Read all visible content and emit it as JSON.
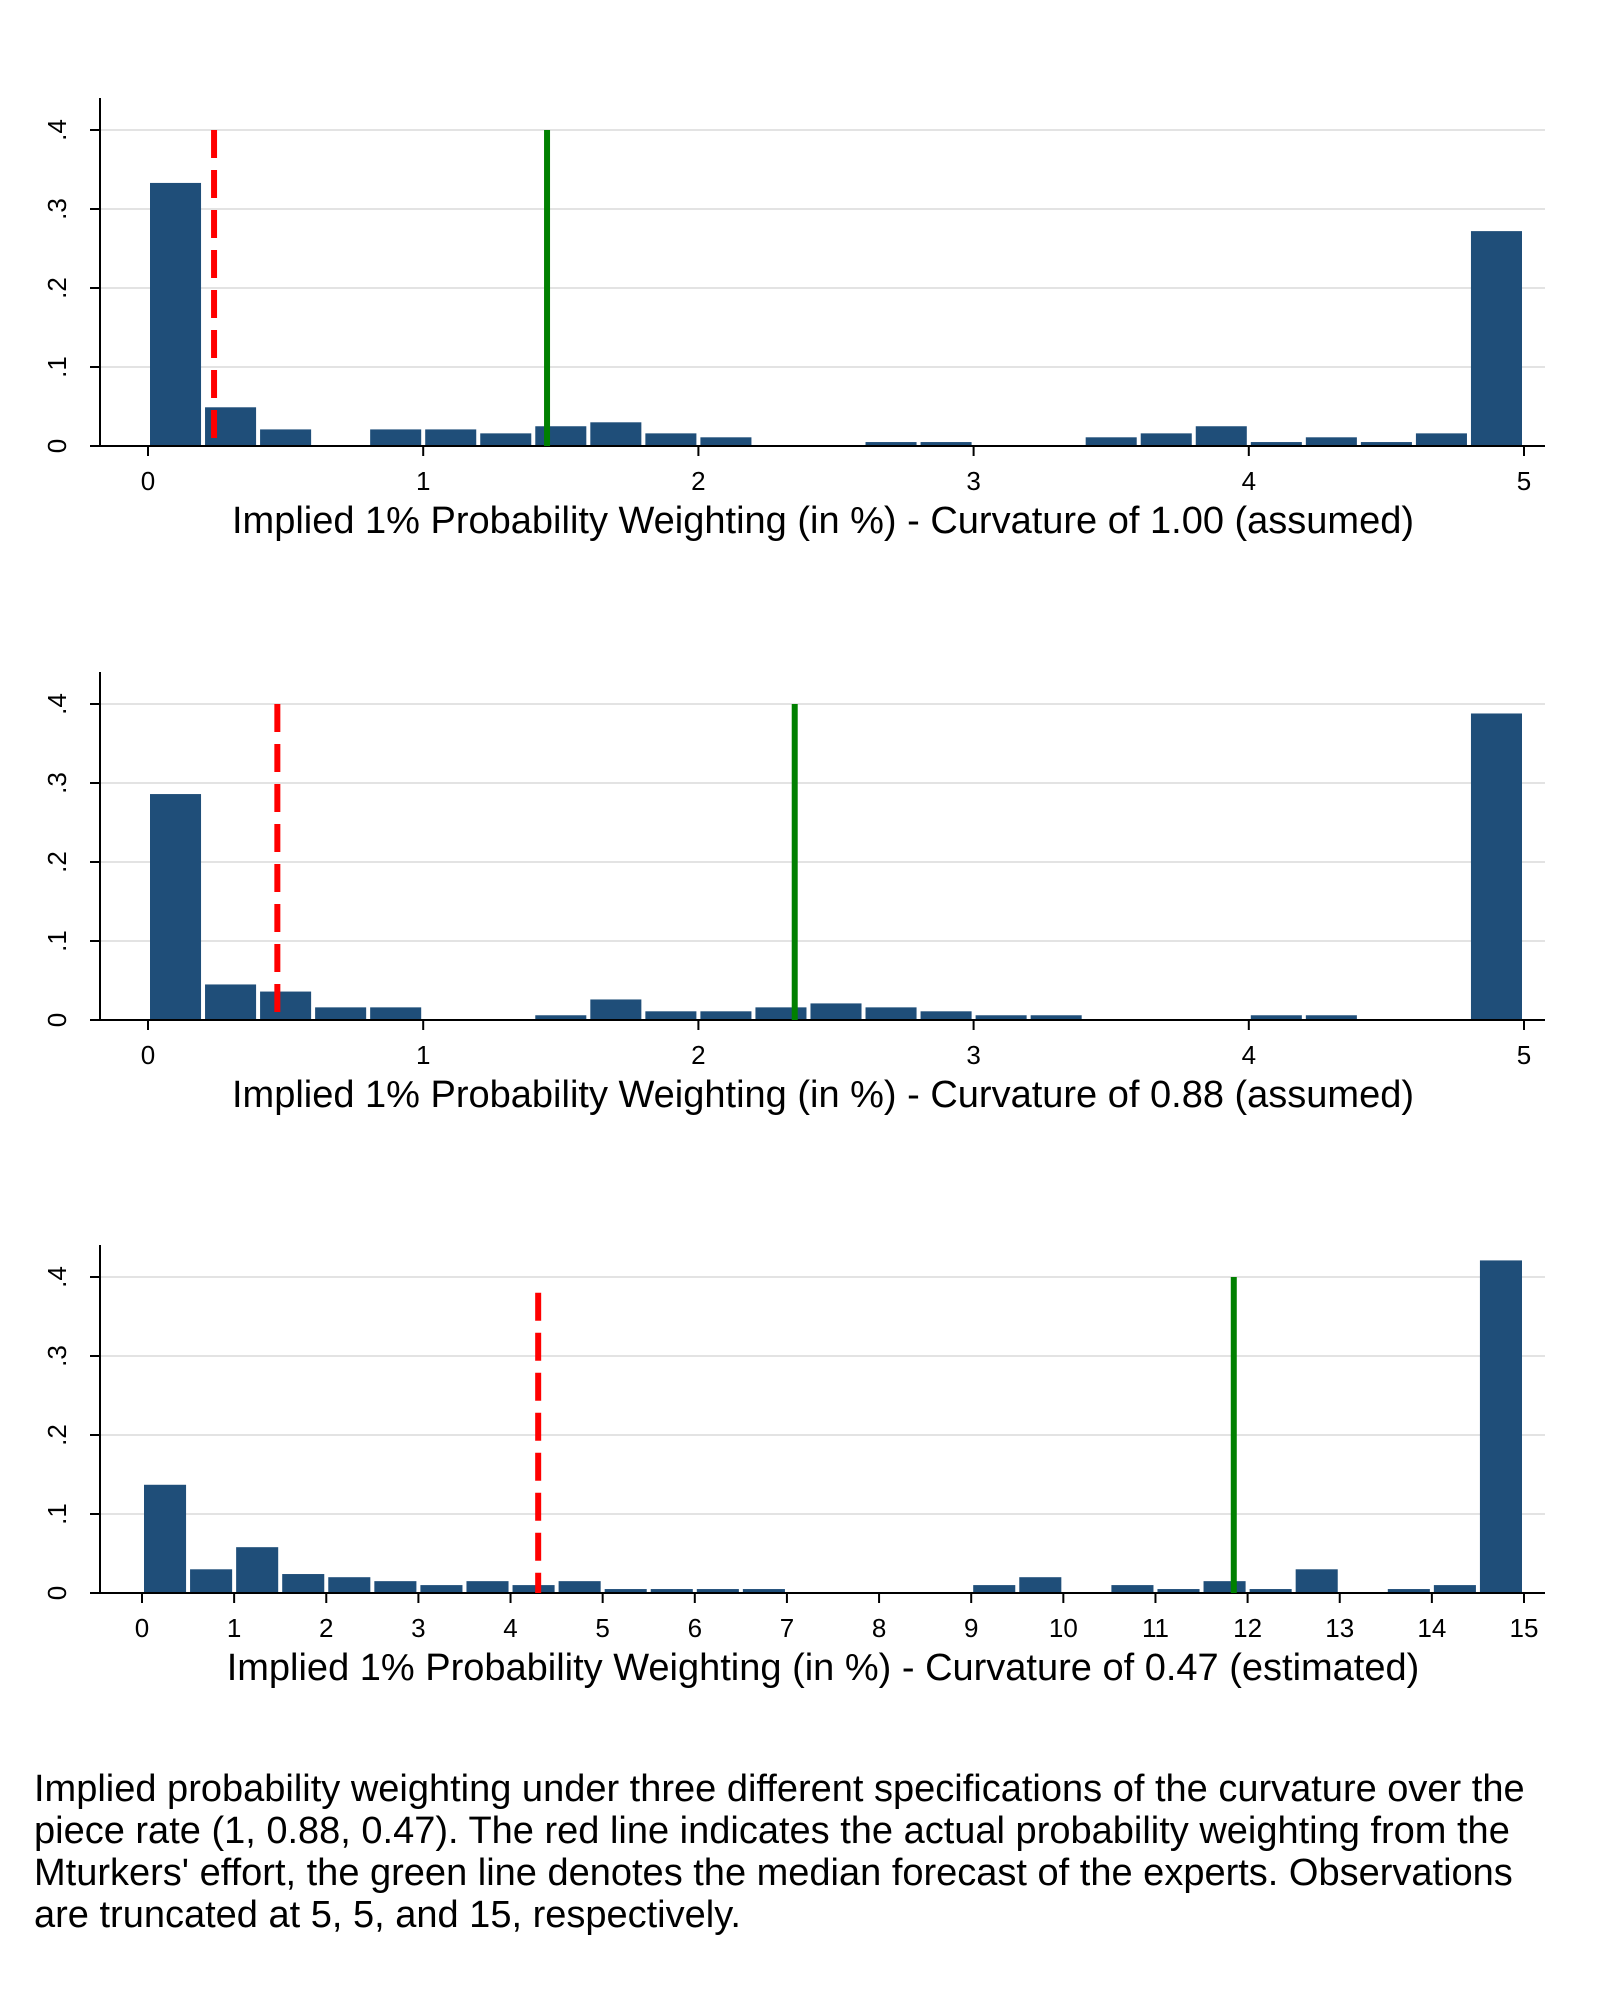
{
  "chart_data": [
    {
      "type": "bar",
      "xlabel": "Implied 1% Probability Weighting (in %) - Curvature of 1.00 (assumed)",
      "ylabel": "",
      "xlim": [
        0,
        5
      ],
      "xticks": [
        "0",
        "1",
        "2",
        "3",
        "4",
        "5"
      ],
      "ylim": [
        0,
        0.4
      ],
      "yticks": [
        "0",
        ".1",
        ".2",
        ".3",
        ".4"
      ],
      "bin_width": 0.2,
      "bins": [
        {
          "x": 0.1,
          "value": 0.333
        },
        {
          "x": 0.3,
          "value": 0.049
        },
        {
          "x": 0.5,
          "value": 0.021
        },
        {
          "x": 0.9,
          "value": 0.021
        },
        {
          "x": 1.1,
          "value": 0.021
        },
        {
          "x": 1.3,
          "value": 0.016
        },
        {
          "x": 1.5,
          "value": 0.025
        },
        {
          "x": 1.7,
          "value": 0.03
        },
        {
          "x": 1.9,
          "value": 0.016
        },
        {
          "x": 2.1,
          "value": 0.011
        },
        {
          "x": 2.7,
          "value": 0.005
        },
        {
          "x": 2.9,
          "value": 0.005
        },
        {
          "x": 3.5,
          "value": 0.011
        },
        {
          "x": 3.7,
          "value": 0.016
        },
        {
          "x": 3.9,
          "value": 0.025
        },
        {
          "x": 4.1,
          "value": 0.005
        },
        {
          "x": 4.3,
          "value": 0.011
        },
        {
          "x": 4.5,
          "value": 0.005
        },
        {
          "x": 4.7,
          "value": 0.016
        },
        {
          "x": 4.9,
          "value": 0.272
        }
      ],
      "lines": [
        {
          "name": "Actual probability weighting (Mturkers)",
          "x": 0.24,
          "y_top": 0.4,
          "color": "#ff0000",
          "style": "dashed"
        },
        {
          "name": "Median expert forecast",
          "x": 1.45,
          "y_top": 0.4,
          "color": "#008000",
          "style": "solid"
        }
      ],
      "bar_color": "#1f4e79",
      "grid": true
    },
    {
      "type": "bar",
      "xlabel": "Implied 1% Probability Weighting (in %) - Curvature of 0.88 (assumed)",
      "ylabel": "",
      "xlim": [
        0,
        5
      ],
      "xticks": [
        "0",
        "1",
        "2",
        "3",
        "4",
        "5"
      ],
      "ylim": [
        0,
        0.4
      ],
      "yticks": [
        "0",
        ".1",
        ".2",
        ".3",
        ".4"
      ],
      "bin_width": 0.2,
      "bins": [
        {
          "x": 0.1,
          "value": 0.286
        },
        {
          "x": 0.3,
          "value": 0.045
        },
        {
          "x": 0.5,
          "value": 0.036
        },
        {
          "x": 0.7,
          "value": 0.016
        },
        {
          "x": 0.9,
          "value": 0.016
        },
        {
          "x": 1.5,
          "value": 0.006
        },
        {
          "x": 1.7,
          "value": 0.026
        },
        {
          "x": 1.9,
          "value": 0.011
        },
        {
          "x": 2.1,
          "value": 0.011
        },
        {
          "x": 2.3,
          "value": 0.016
        },
        {
          "x": 2.5,
          "value": 0.021
        },
        {
          "x": 2.7,
          "value": 0.016
        },
        {
          "x": 2.9,
          "value": 0.011
        },
        {
          "x": 3.1,
          "value": 0.006
        },
        {
          "x": 3.3,
          "value": 0.006
        },
        {
          "x": 4.1,
          "value": 0.006
        },
        {
          "x": 4.3,
          "value": 0.006
        },
        {
          "x": 4.9,
          "value": 0.388
        }
      ],
      "lines": [
        {
          "name": "Actual probability weighting (Mturkers)",
          "x": 0.47,
          "y_top": 0.4,
          "color": "#ff0000",
          "style": "dashed"
        },
        {
          "name": "Median expert forecast",
          "x": 2.35,
          "y_top": 0.4,
          "color": "#008000",
          "style": "solid"
        }
      ],
      "bar_color": "#1f4e79",
      "grid": true
    },
    {
      "type": "bar",
      "xlabel": "Implied 1% Probability Weighting (in %) - Curvature of 0.47 (estimated)",
      "ylabel": "",
      "xlim": [
        0,
        15
      ],
      "xticks": [
        "0",
        "1",
        "2",
        "3",
        "4",
        "5",
        "6",
        "7",
        "8",
        "9",
        "10",
        "11",
        "12",
        "13",
        "14",
        "15"
      ],
      "ylim": [
        0,
        0.4
      ],
      "yticks": [
        "0",
        ".1",
        ".2",
        ".3",
        ".4"
      ],
      "bin_width": 0.5,
      "bins": [
        {
          "x": 0.25,
          "value": 0.137
        },
        {
          "x": 0.75,
          "value": 0.03
        },
        {
          "x": 1.25,
          "value": 0.058
        },
        {
          "x": 1.75,
          "value": 0.024
        },
        {
          "x": 2.25,
          "value": 0.02
        },
        {
          "x": 2.75,
          "value": 0.015
        },
        {
          "x": 3.25,
          "value": 0.01
        },
        {
          "x": 3.75,
          "value": 0.015
        },
        {
          "x": 4.25,
          "value": 0.01
        },
        {
          "x": 4.75,
          "value": 0.015
        },
        {
          "x": 5.25,
          "value": 0.005
        },
        {
          "x": 5.75,
          "value": 0.005
        },
        {
          "x": 6.25,
          "value": 0.005
        },
        {
          "x": 6.75,
          "value": 0.005
        },
        {
          "x": 9.25,
          "value": 0.01
        },
        {
          "x": 9.75,
          "value": 0.02
        },
        {
          "x": 10.75,
          "value": 0.01
        },
        {
          "x": 11.25,
          "value": 0.005
        },
        {
          "x": 11.75,
          "value": 0.015
        },
        {
          "x": 12.25,
          "value": 0.005
        },
        {
          "x": 12.75,
          "value": 0.03
        },
        {
          "x": 13.75,
          "value": 0.005
        },
        {
          "x": 14.25,
          "value": 0.01
        },
        {
          "x": 14.75,
          "value": 0.421
        }
      ],
      "lines": [
        {
          "name": "Actual probability weighting (Mturkers)",
          "x": 4.3,
          "y_top": 0.38,
          "color": "#ff0000",
          "style": "dashed"
        },
        {
          "name": "Median expert forecast",
          "x": 11.85,
          "y_top": 0.4,
          "color": "#008000",
          "style": "solid"
        }
      ],
      "bar_color": "#1f4e79",
      "grid": true
    }
  ],
  "caption": "Implied probability weighting under three different specifications of the curvature over the piece rate (1, 0.88, 0.47). The red line indicates the actual probability weighting from the Mturkers' effort, the green line denotes the median forecast of the experts. Observations are truncated at 5, 5, and 15, respectively."
}
